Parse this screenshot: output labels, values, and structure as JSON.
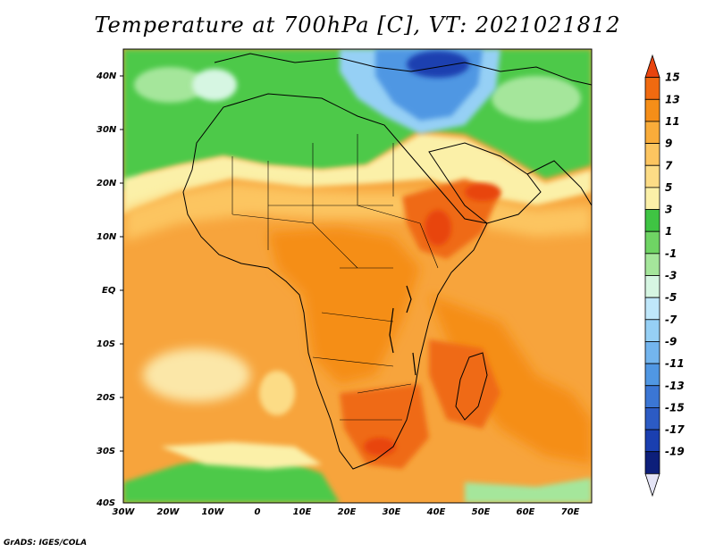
{
  "title": "Temperature at 700hPa [C], VT: 2021021812",
  "credit": "GrADS: IGES/COLA",
  "lat_labels": [
    "40N",
    "30N",
    "20N",
    "10N",
    "EQ",
    "10S",
    "20S",
    "30S",
    "40S"
  ],
  "lon_labels": [
    "30W",
    "20W",
    "10W",
    "0",
    "10E",
    "20E",
    "30E",
    "40E",
    "50E",
    "60E",
    "70E"
  ],
  "colorbar": {
    "labels": [
      "15",
      "13",
      "11",
      "9",
      "7",
      "5",
      "3",
      "1",
      "-1",
      "-3",
      "-5",
      "-7",
      "-9",
      "-11",
      "-13",
      "-15",
      "-17",
      "-19"
    ],
    "colors": [
      "#e8440e",
      "#f06a10",
      "#f58e18",
      "#f9ac3a",
      "#fcc560",
      "#fcdc86",
      "#fbf0a8",
      "#3fc443",
      "#6fd464",
      "#a5e69b",
      "#d6f6e2",
      "#bfe7fa",
      "#96d0f5",
      "#73b5ee",
      "#5097e3",
      "#3b76d4",
      "#2c5bc4",
      "#1a3fb0",
      "#0d1f7a",
      "#e4e4f6"
    ]
  },
  "colors": {
    "ocean_base": "#f7a43c",
    "land_base": "#f59a2c",
    "hot": "#ef6a16",
    "hotter": "#e8440e",
    "cool_band": "#fcdc86",
    "green": "#4ec94a",
    "light_green": "#a5e69b",
    "blue": "#3b76d4",
    "dark_blue": "#1a3fb0",
    "pale": "#fbe7a8"
  }
}
